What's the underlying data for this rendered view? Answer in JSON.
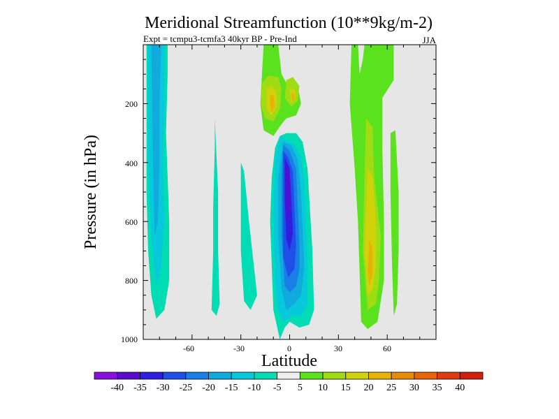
{
  "chart_data": {
    "type": "heatmap",
    "title": "Meridional Streamfunction (10**9kg/m-2)",
    "subtitle": "Expt = tcmpu3-tcmfa3    40kyr BP - Pre-Ind",
    "season": "JJA",
    "xlabel": "Latitude",
    "ylabel": "Pressure (in hPa)",
    "xlim": [
      -90,
      90
    ],
    "ylim": [
      0,
      1000
    ],
    "y_inverted": true,
    "x_ticks": [
      "-60",
      "-30",
      "0",
      "30",
      "60"
    ],
    "y_ticks": [
      "200",
      "400",
      "600",
      "800",
      "1000"
    ],
    "background_color": "#e6e6e6",
    "colorbar": {
      "labels": [
        "-40",
        "-35",
        "-30",
        "-25",
        "-20",
        "-15",
        "-10",
        "-5",
        "5",
        "10",
        "15",
        "20",
        "25",
        "30",
        "35",
        "40"
      ],
      "colors": [
        "#8a10e0",
        "#5a0ccc",
        "#2e1ee0",
        "#1e50e8",
        "#1a7ee8",
        "#10aadc",
        "#08c8dc",
        "#00dcb4",
        "#eeeeee",
        "#5ae21e",
        "#a0dc14",
        "#d2d20a",
        "#e6b408",
        "#e68c0a",
        "#e6640c",
        "#dc3c10",
        "#d21e0a"
      ]
    },
    "contour_regions": [
      {
        "level": -10,
        "color": "#00dcb4",
        "polygon": [
          [
            -88,
            0
          ],
          [
            -75,
            0
          ],
          [
            -75,
            100
          ],
          [
            -76,
            300
          ],
          [
            -74,
            600
          ],
          [
            -74,
            800
          ],
          [
            -77,
            900
          ],
          [
            -82,
            930
          ],
          [
            -85,
            850
          ],
          [
            -87,
            700
          ],
          [
            -88,
            500
          ]
        ]
      },
      {
        "level": -15,
        "color": "#08c8dc",
        "polygon": [
          [
            -87,
            0
          ],
          [
            -77,
            0
          ],
          [
            -77,
            200
          ],
          [
            -78,
            400
          ],
          [
            -77,
            600
          ],
          [
            -79,
            750
          ],
          [
            -82,
            820
          ],
          [
            -85,
            650
          ],
          [
            -87,
            400
          ]
        ]
      },
      {
        "level": -20,
        "color": "#10aadc",
        "polygon": [
          [
            -85,
            0
          ],
          [
            -79,
            0
          ],
          [
            -80,
            200
          ],
          [
            -80,
            400
          ],
          [
            -81,
            600
          ],
          [
            -83,
            650
          ],
          [
            -84,
            400
          ]
        ]
      },
      {
        "level": -10,
        "color": "#00dcb4",
        "polygon": [
          [
            -48,
            900
          ],
          [
            -47,
            700
          ],
          [
            -47,
            550
          ],
          [
            -46,
            350
          ],
          [
            -46,
            250
          ],
          [
            -44,
            500
          ],
          [
            -44,
            700
          ],
          [
            -43,
            880
          ],
          [
            -45,
            920
          ]
        ]
      },
      {
        "level": -10,
        "color": "#00dcb4",
        "polygon": [
          [
            -30,
            400
          ],
          [
            -28,
            430
          ],
          [
            -25,
            600
          ],
          [
            -22,
            750
          ],
          [
            -20,
            850
          ],
          [
            -24,
            900
          ],
          [
            -28,
            870
          ],
          [
            -30,
            700
          ]
        ]
      },
      {
        "level": -5,
        "color": "#00dcb4",
        "polygon": [
          [
            -6,
            1000
          ],
          [
            -10,
            900
          ],
          [
            -12,
            600
          ],
          [
            -11,
            450
          ],
          [
            -9,
            350
          ],
          [
            -6,
            310
          ],
          [
            -2,
            300
          ],
          [
            4,
            300
          ],
          [
            8,
            330
          ],
          [
            11,
            420
          ],
          [
            14,
            700
          ],
          [
            15,
            900
          ],
          [
            12,
            950
          ],
          [
            6,
            960
          ],
          [
            0,
            940
          ],
          [
            -3,
            960
          ]
        ]
      },
      {
        "level": -10,
        "color": "#08c8dc",
        "polygon": [
          [
            -5,
            310
          ],
          [
            -1,
            330
          ],
          [
            3,
            340
          ],
          [
            7,
            380
          ],
          [
            9,
            470
          ],
          [
            10,
            600
          ],
          [
            11,
            720
          ],
          [
            11,
            880
          ],
          [
            7,
            920
          ],
          [
            2,
            920
          ],
          [
            -4,
            940
          ],
          [
            -7,
            900
          ],
          [
            -9,
            800
          ],
          [
            -10,
            600
          ],
          [
            -9,
            400
          ],
          [
            -7,
            340
          ]
        ]
      },
      {
        "level": -15,
        "color": "#10aadc",
        "polygon": [
          [
            -4,
            330
          ],
          [
            1,
            340
          ],
          [
            5,
            390
          ],
          [
            7,
            500
          ],
          [
            8,
            620
          ],
          [
            9,
            760
          ],
          [
            7,
            850
          ],
          [
            3,
            880
          ],
          [
            -2,
            900
          ],
          [
            -5,
            830
          ],
          [
            -7,
            650
          ],
          [
            -7,
            450
          ]
        ]
      },
      {
        "level": -20,
        "color": "#1a7ee8",
        "polygon": [
          [
            -4,
            340
          ],
          [
            0,
            360
          ],
          [
            4,
            420
          ],
          [
            5,
            550
          ],
          [
            6,
            680
          ],
          [
            6,
            760
          ],
          [
            4,
            820
          ],
          [
            0,
            840
          ],
          [
            -3,
            820
          ],
          [
            -5,
            650
          ],
          [
            -5,
            450
          ]
        ]
      },
      {
        "level": -25,
        "color": "#1e50e8",
        "polygon": [
          [
            -4,
            360
          ],
          [
            -1,
            380
          ],
          [
            2,
            430
          ],
          [
            3,
            560
          ],
          [
            4,
            680
          ],
          [
            3,
            760
          ],
          [
            -1,
            790
          ],
          [
            -4,
            720
          ],
          [
            -4,
            500
          ]
        ]
      },
      {
        "level": -30,
        "color": "#2e1ee0",
        "polygon": [
          [
            -3,
            380
          ],
          [
            0,
            420
          ],
          [
            1,
            520
          ],
          [
            2,
            640
          ],
          [
            0,
            700
          ],
          [
            -2,
            660
          ],
          [
            -3,
            520
          ]
        ]
      },
      {
        "level": -35,
        "color": "#5a0ccc",
        "polygon": [
          [
            -2,
            400
          ],
          [
            0,
            440
          ],
          [
            0,
            560
          ],
          [
            -1,
            600
          ],
          [
            -2,
            550
          ]
        ]
      },
      {
        "level": 5,
        "color": "#5ae21e",
        "polygon": [
          [
            -16,
            0
          ],
          [
            -7,
            0
          ],
          [
            -5,
            100
          ],
          [
            -1,
            140
          ],
          [
            5,
            140
          ],
          [
            7,
            200
          ],
          [
            4,
            240
          ],
          [
            -2,
            250
          ],
          [
            -5,
            270
          ],
          [
            -10,
            310
          ],
          [
            -16,
            290
          ],
          [
            -18,
            200
          ],
          [
            -17,
            100
          ]
        ]
      },
      {
        "level": 15,
        "color": "#a0dc14",
        "polygon": [
          [
            -17,
            130
          ],
          [
            -13,
            105
          ],
          [
            -7,
            110
          ],
          [
            -5,
            150
          ],
          [
            -6,
            220
          ],
          [
            -10,
            260
          ],
          [
            -15,
            250
          ],
          [
            -18,
            200
          ]
        ]
      },
      {
        "level": 15,
        "color": "#a0dc14",
        "polygon": [
          [
            -2,
            120
          ],
          [
            2,
            110
          ],
          [
            6,
            140
          ],
          [
            5,
            190
          ],
          [
            1,
            210
          ],
          [
            -3,
            180
          ]
        ]
      },
      {
        "level": 20,
        "color": "#d2d20a",
        "polygon": [
          [
            -14,
            150
          ],
          [
            -11,
            140
          ],
          [
            -8,
            160
          ],
          [
            -8,
            210
          ],
          [
            -11,
            240
          ],
          [
            -14,
            220
          ]
        ]
      },
      {
        "level": 20,
        "color": "#d2d20a",
        "polygon": [
          [
            0,
            150
          ],
          [
            3,
            150
          ],
          [
            4,
            180
          ],
          [
            1,
            200
          ]
        ]
      },
      {
        "level": 25,
        "color": "#e6b408",
        "polygon": [
          [
            -12,
            170
          ],
          [
            -10,
            170
          ],
          [
            -9,
            210
          ],
          [
            -11,
            230
          ],
          [
            -12,
            210
          ]
        ]
      },
      {
        "level": 25,
        "color": "#e6b408",
        "polygon": [
          [
            1,
            165
          ],
          [
            3,
            165
          ],
          [
            3,
            185
          ],
          [
            2,
            195
          ]
        ]
      },
      {
        "level": 5,
        "color": "#5ae21e",
        "polygon": [
          [
            38,
            0
          ],
          [
            42,
            0
          ],
          [
            43,
            100
          ],
          [
            45,
            50
          ],
          [
            46,
            0
          ],
          [
            64,
            0
          ],
          [
            64,
            120
          ],
          [
            57,
            180
          ],
          [
            57,
            350
          ],
          [
            58,
            600
          ],
          [
            58,
            800
          ],
          [
            54,
            940
          ],
          [
            48,
            965
          ],
          [
            44,
            940
          ],
          [
            42,
            600
          ],
          [
            40,
            420
          ],
          [
            37,
            200
          ]
        ]
      },
      {
        "level": 5,
        "color": "#5ae21e",
        "polygon": [
          [
            62,
            300
          ],
          [
            65,
            290
          ],
          [
            67,
            500
          ],
          [
            67,
            700
          ],
          [
            66,
            880
          ],
          [
            64,
            920
          ],
          [
            63,
            750
          ],
          [
            62,
            500
          ]
        ]
      },
      {
        "level": 15,
        "color": "#a0dc14",
        "polygon": [
          [
            47,
            250
          ],
          [
            51,
            280
          ],
          [
            52,
            450
          ],
          [
            56,
            650
          ],
          [
            55,
            800
          ],
          [
            53,
            880
          ],
          [
            48,
            900
          ],
          [
            45,
            700
          ],
          [
            46,
            450
          ]
        ]
      },
      {
        "level": 20,
        "color": "#d2d20a",
        "polygon": [
          [
            48,
            420
          ],
          [
            51,
            450
          ],
          [
            53,
            600
          ],
          [
            53,
            750
          ],
          [
            51,
            830
          ],
          [
            48,
            850
          ],
          [
            46,
            700
          ],
          [
            47,
            550
          ]
        ]
      },
      {
        "level": 25,
        "color": "#e6b408",
        "polygon": [
          [
            49,
            660
          ],
          [
            51,
            690
          ],
          [
            51,
            780
          ],
          [
            49,
            820
          ],
          [
            48,
            770
          ]
        ]
      }
    ]
  }
}
